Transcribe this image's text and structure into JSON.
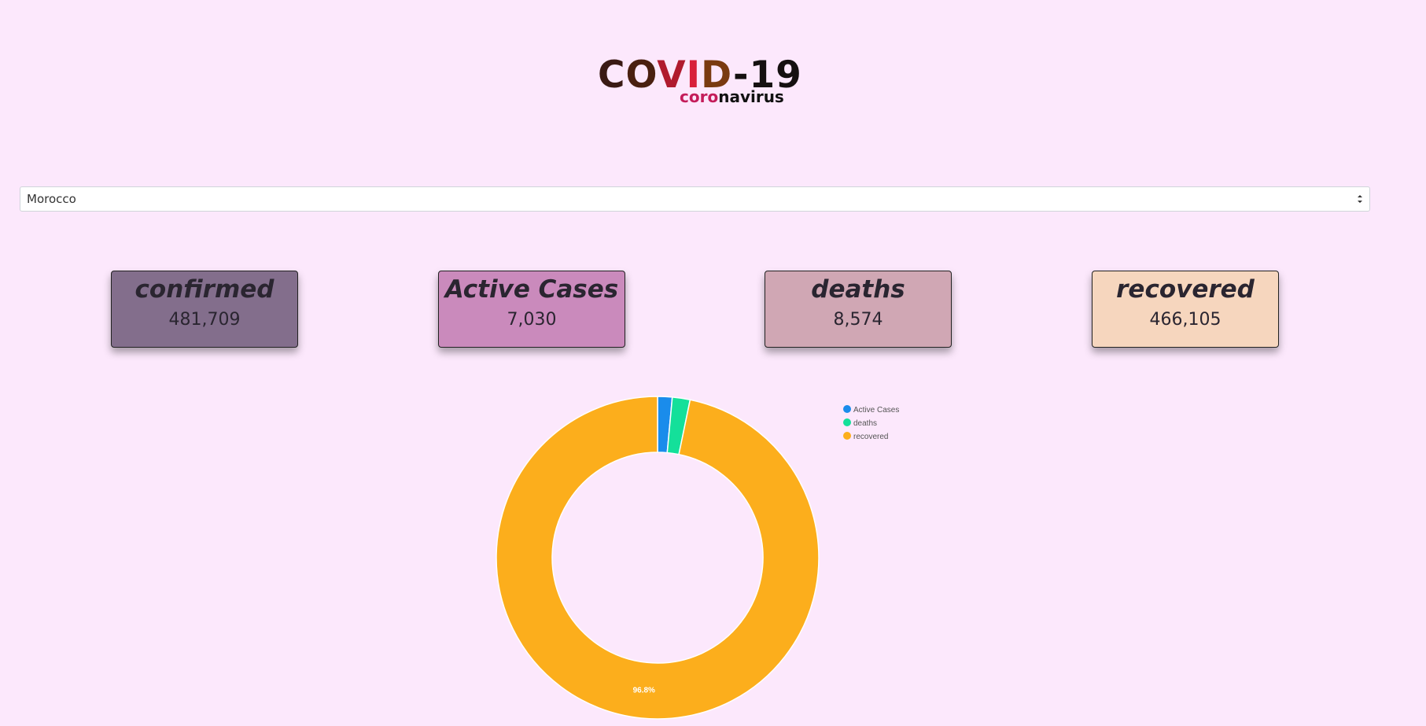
{
  "logo": {
    "title_parts": [
      "C",
      "O",
      "V",
      "I",
      "D",
      "-19"
    ],
    "subtitle_pink": "coro",
    "subtitle_dark": "navirus"
  },
  "country_select": {
    "selected": "Morocco"
  },
  "cards": {
    "confirmed": {
      "title": "confirmed",
      "value": "481,709"
    },
    "active": {
      "title": "Active Cases",
      "value": "7,030"
    },
    "deaths": {
      "title": "deaths",
      "value": "8,574"
    },
    "recovered": {
      "title": "recovered",
      "value": "466,105"
    }
  },
  "colors": {
    "background": "#fce8fc",
    "active": "#1a8ceb",
    "deaths": "#14e09a",
    "recovered": "#fcae1c"
  },
  "chart_data": {
    "type": "pie",
    "variant": "doughnut",
    "categories": [
      "Active Cases",
      "deaths",
      "recovered"
    ],
    "values": [
      7030,
      8574,
      466105
    ],
    "colors": [
      "#1a8ceb",
      "#14e09a",
      "#fcae1c"
    ],
    "legend": "top-right",
    "slice_labels": [
      "",
      "",
      "96.8%"
    ]
  }
}
